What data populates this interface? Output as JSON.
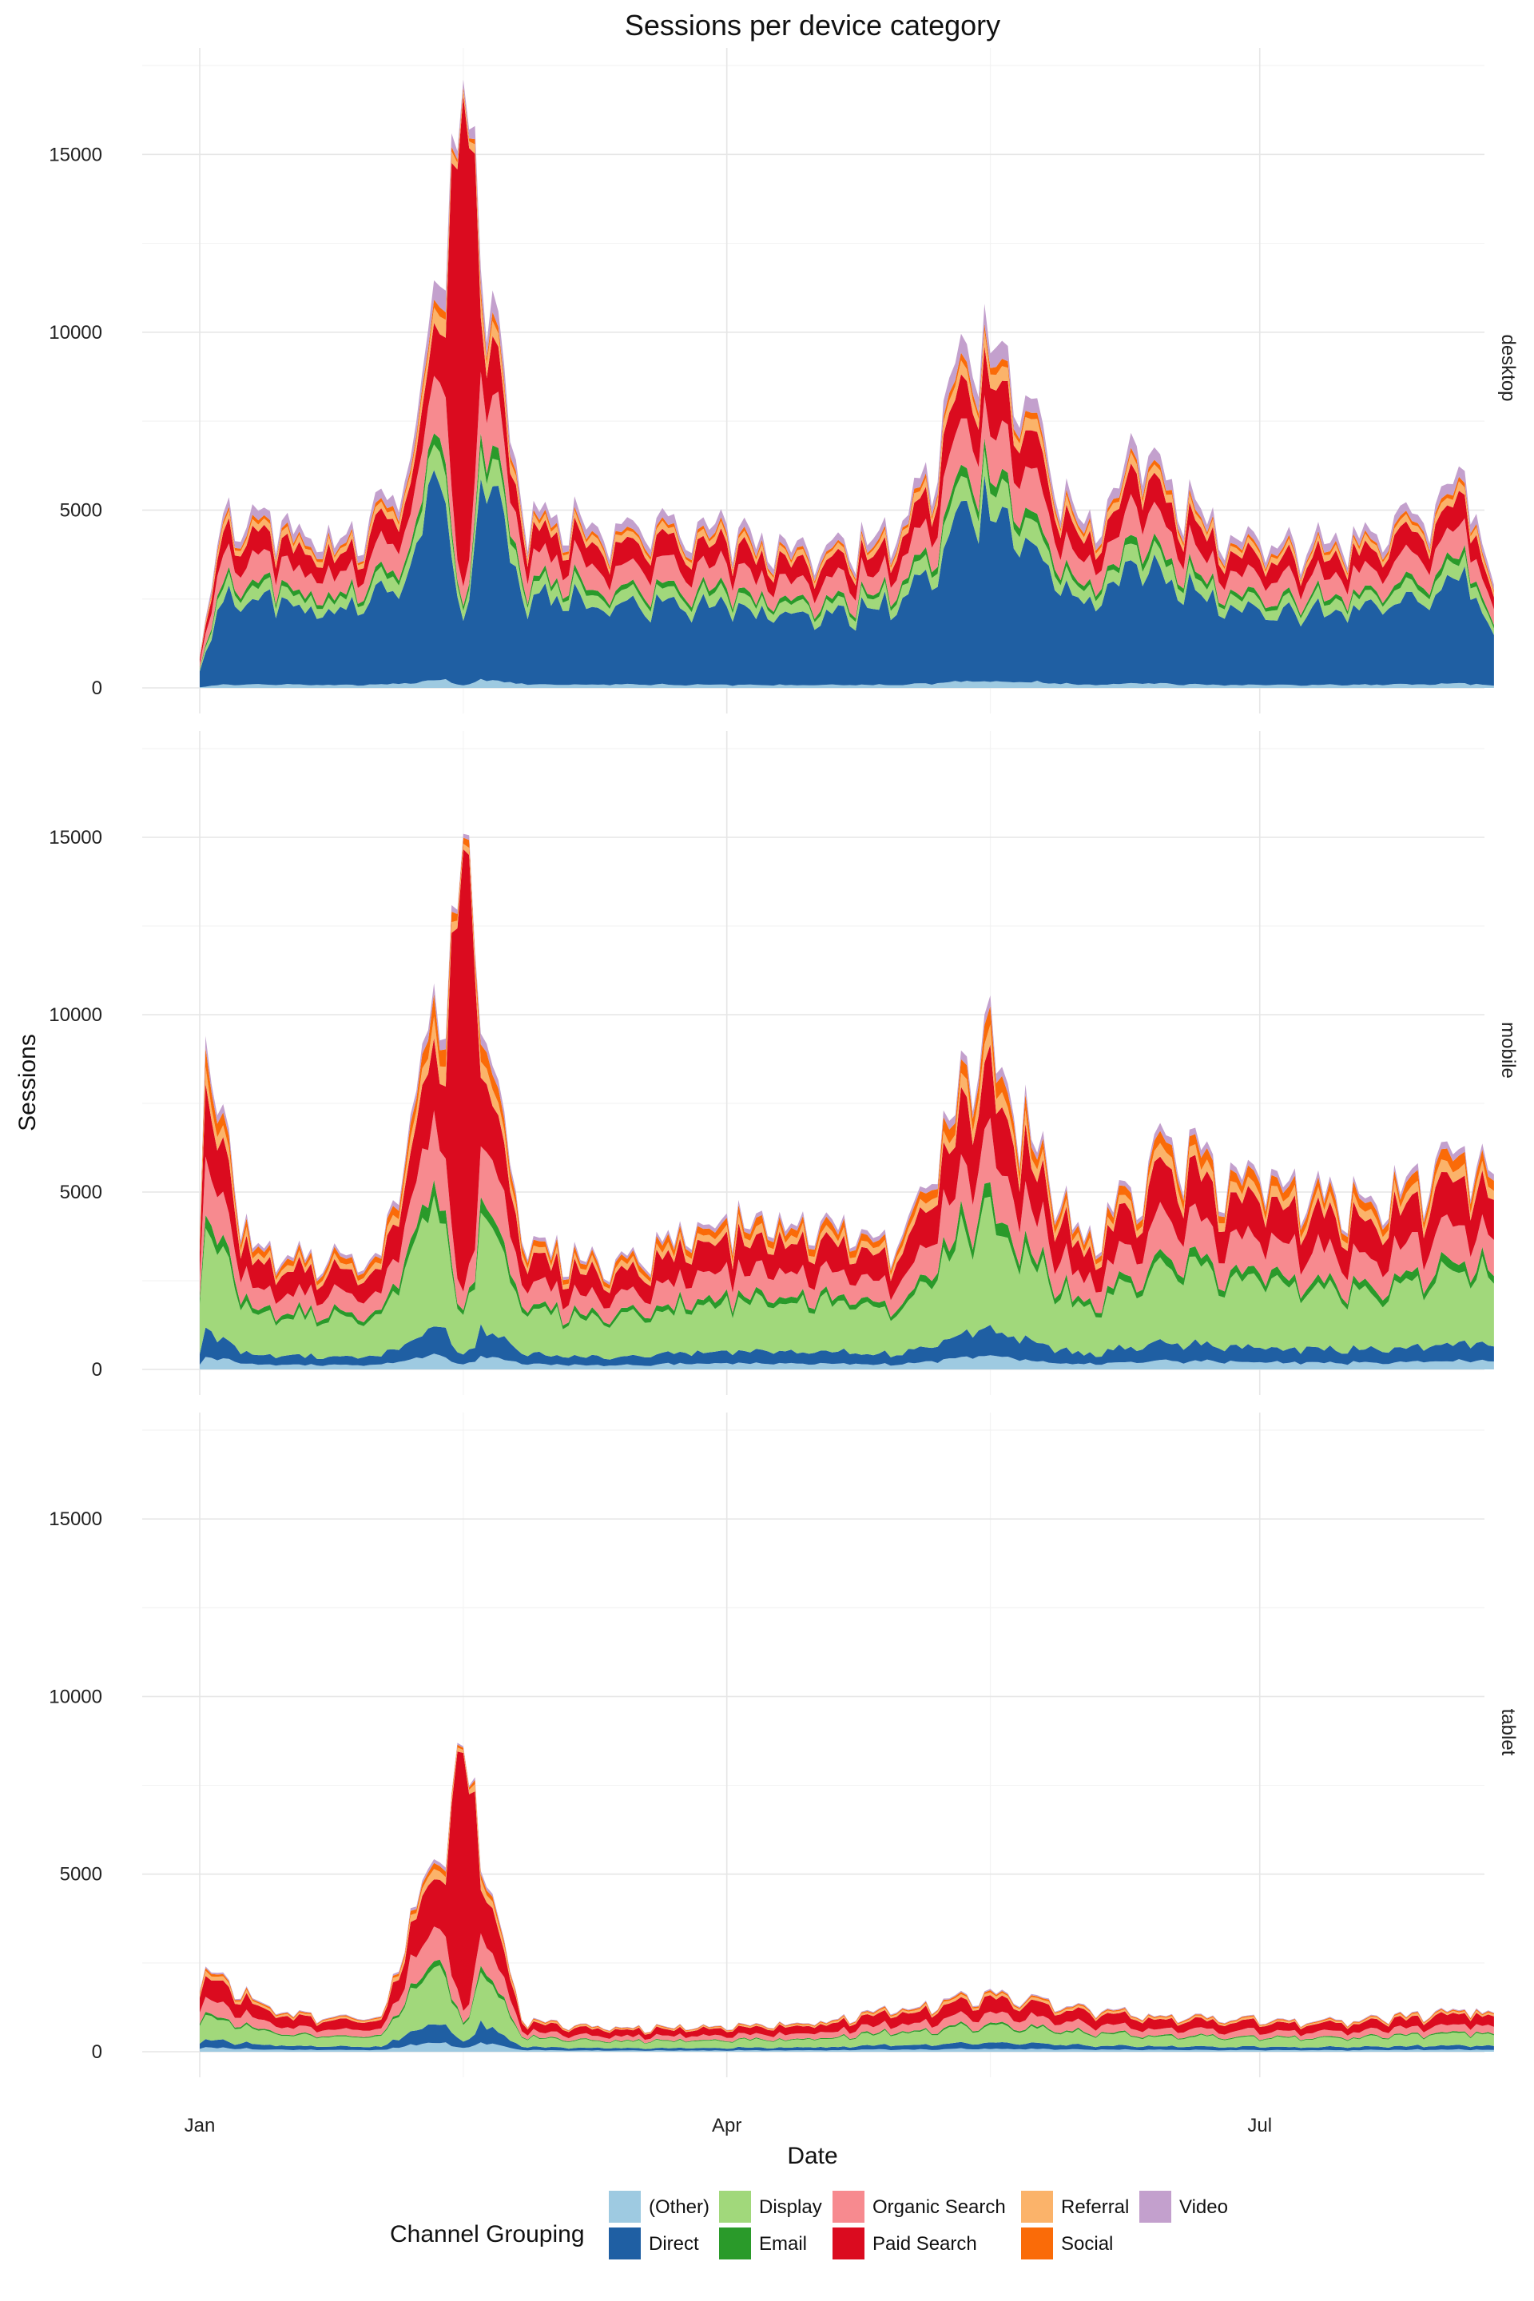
{
  "chart_data": {
    "type": "area",
    "stacked": true,
    "title": "Sessions per device category",
    "xlabel": "Date",
    "ylabel": "Sessions",
    "x_range": [
      "2017-01-01",
      "2017-08-10"
    ],
    "ylim": [
      0,
      17500
    ],
    "y_ticks": [
      0,
      5000,
      10000,
      15000
    ],
    "x_ticks": [
      {
        "label": "Jan",
        "date": "2017-01-01"
      },
      {
        "label": "Apr",
        "date": "2017-04-01"
      },
      {
        "label": "Jul",
        "date": "2017-07-01"
      }
    ],
    "grid": true,
    "legend": {
      "title": "Channel Grouping",
      "position": "bottom"
    },
    "series": [
      {
        "name": "(Other)",
        "color": "#9ecae1"
      },
      {
        "name": "Direct",
        "color": "#1f5fa3"
      },
      {
        "name": "Display",
        "color": "#a1d87b"
      },
      {
        "name": "Email",
        "color": "#2a9a2a"
      },
      {
        "name": "Organic Search",
        "color": "#f78a8f"
      },
      {
        "name": "Paid Search",
        "color": "#db0b1f"
      },
      {
        "name": "Referral",
        "color": "#fbb36a"
      },
      {
        "name": "Social",
        "color": "#fa6b08"
      },
      {
        "name": "Video",
        "color": "#c3a0cd"
      }
    ],
    "panels": [
      {
        "device": "desktop",
        "approx_totals": [
          {
            "date": "2017-01-01",
            "total": 900
          },
          {
            "date": "2017-01-05",
            "total": 4900
          },
          {
            "date": "2017-01-15",
            "total": 4700
          },
          {
            "date": "2017-01-25",
            "total": 4200
          },
          {
            "date": "2017-02-05",
            "total": 5800
          },
          {
            "date": "2017-02-15",
            "total": 17100
          },
          {
            "date": "2017-02-25",
            "total": 5100
          },
          {
            "date": "2017-03-15",
            "total": 4800
          },
          {
            "date": "2017-04-01",
            "total": 4600
          },
          {
            "date": "2017-04-15",
            "total": 3800
          },
          {
            "date": "2017-05-01",
            "total": 4700
          },
          {
            "date": "2017-05-15",
            "total": 10800
          },
          {
            "date": "2017-06-01",
            "total": 4600
          },
          {
            "date": "2017-06-10",
            "total": 6800
          },
          {
            "date": "2017-06-20",
            "total": 5300
          },
          {
            "date": "2017-07-01",
            "total": 4100
          },
          {
            "date": "2017-07-20",
            "total": 4400
          },
          {
            "date": "2017-08-05",
            "total": 6100
          },
          {
            "date": "2017-08-10",
            "total": 2900
          }
        ],
        "peak": {
          "date": "2017-02-15",
          "total": 17100,
          "main_channel": "Paid Search"
        }
      },
      {
        "device": "mobile",
        "approx_totals": [
          {
            "date": "2017-01-01",
            "total": 3800
          },
          {
            "date": "2017-01-02",
            "total": 9400
          },
          {
            "date": "2017-01-10",
            "total": 3400
          },
          {
            "date": "2017-02-01",
            "total": 3200
          },
          {
            "date": "2017-02-15",
            "total": 15100
          },
          {
            "date": "2017-02-25",
            "total": 3600
          },
          {
            "date": "2017-03-15",
            "total": 3200
          },
          {
            "date": "2017-04-01",
            "total": 4400
          },
          {
            "date": "2017-05-01",
            "total": 3800
          },
          {
            "date": "2017-05-15",
            "total": 10000
          },
          {
            "date": "2017-06-01",
            "total": 3600
          },
          {
            "date": "2017-06-15",
            "total": 6600
          },
          {
            "date": "2017-07-01",
            "total": 5400
          },
          {
            "date": "2017-07-20",
            "total": 4900
          },
          {
            "date": "2017-08-05",
            "total": 6300
          },
          {
            "date": "2017-08-10",
            "total": 5500
          }
        ],
        "peak": {
          "date": "2017-02-15",
          "total": 15100,
          "main_channel": "Paid Search"
        }
      },
      {
        "device": "tablet",
        "approx_totals": [
          {
            "date": "2017-01-01",
            "total": 1700
          },
          {
            "date": "2017-01-02",
            "total": 2400
          },
          {
            "date": "2017-01-15",
            "total": 1100
          },
          {
            "date": "2017-02-01",
            "total": 1000
          },
          {
            "date": "2017-02-15",
            "total": 8600
          },
          {
            "date": "2017-02-25",
            "total": 900
          },
          {
            "date": "2017-03-15",
            "total": 700
          },
          {
            "date": "2017-04-15",
            "total": 800
          },
          {
            "date": "2017-05-15",
            "total": 1700
          },
          {
            "date": "2017-06-15",
            "total": 1000
          },
          {
            "date": "2017-07-15",
            "total": 900
          },
          {
            "date": "2017-08-05",
            "total": 1200
          },
          {
            "date": "2017-08-10",
            "total": 1100
          }
        ],
        "peak": {
          "date": "2017-02-15",
          "total": 8600,
          "main_channel": "Paid Search"
        }
      }
    ]
  }
}
